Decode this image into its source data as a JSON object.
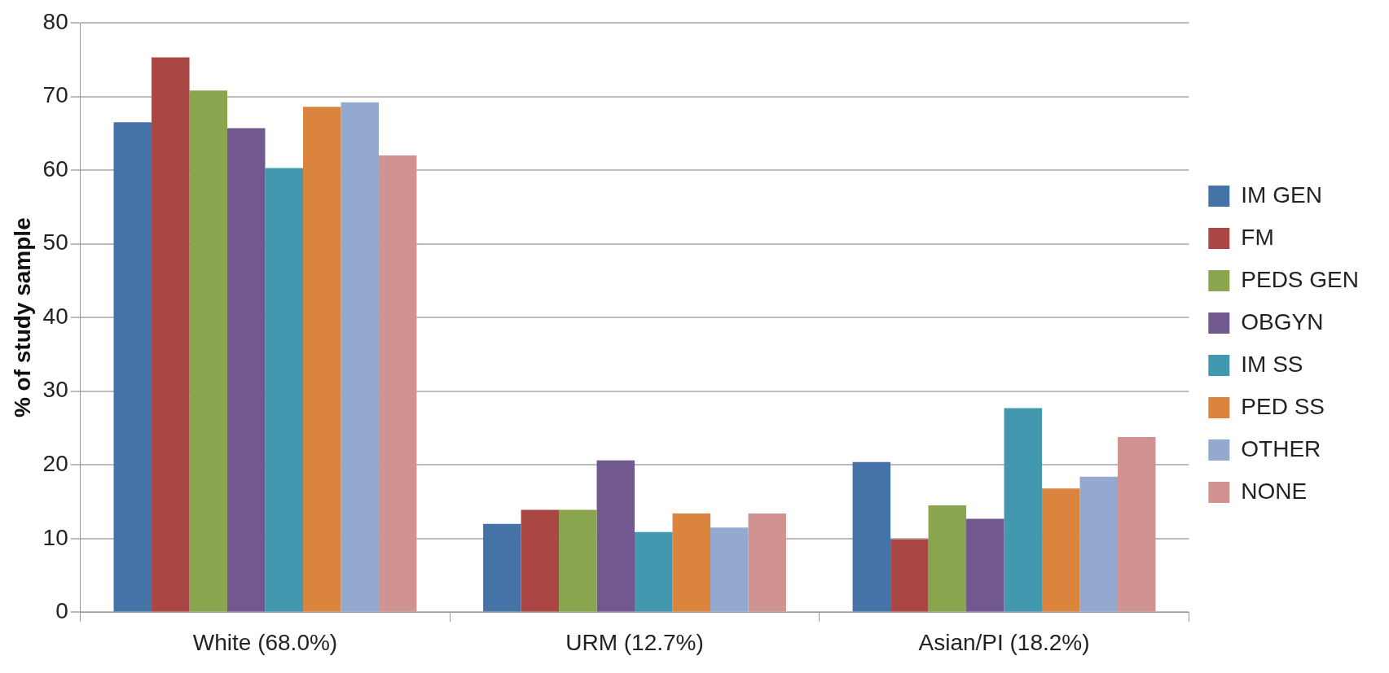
{
  "chart_data": {
    "type": "bar",
    "ylabel": "% of study sample",
    "categories": [
      "White (68.0%)",
      "URM (12.7%)",
      "Asian/PI (18.2%)"
    ],
    "series": [
      {
        "name": "IM GEN",
        "color": "#4572a7",
        "values": [
          66.5,
          12.0,
          20.4
        ]
      },
      {
        "name": "FM",
        "color": "#aa4643",
        "values": [
          75.3,
          13.9,
          9.9
        ]
      },
      {
        "name": "PEDS GEN",
        "color": "#89a54e",
        "values": [
          70.8,
          13.9,
          14.5
        ]
      },
      {
        "name": "OBGYN",
        "color": "#71588f",
        "values": [
          65.7,
          20.6,
          12.7
        ]
      },
      {
        "name": "IM SS",
        "color": "#4198af",
        "values": [
          60.3,
          10.9,
          27.7
        ]
      },
      {
        "name": "PED SS",
        "color": "#db843d",
        "values": [
          68.6,
          13.4,
          16.8
        ]
      },
      {
        "name": "OTHER",
        "color": "#93a9cf",
        "values": [
          69.2,
          11.5,
          18.4
        ]
      },
      {
        "name": "NONE",
        "color": "#d19392",
        "values": [
          62.0,
          13.4,
          23.8
        ]
      }
    ],
    "ylim": [
      0,
      80
    ],
    "yticks": [
      0,
      10,
      20,
      30,
      40,
      50,
      60,
      70,
      80
    ],
    "grid": "y",
    "legend": "right"
  }
}
